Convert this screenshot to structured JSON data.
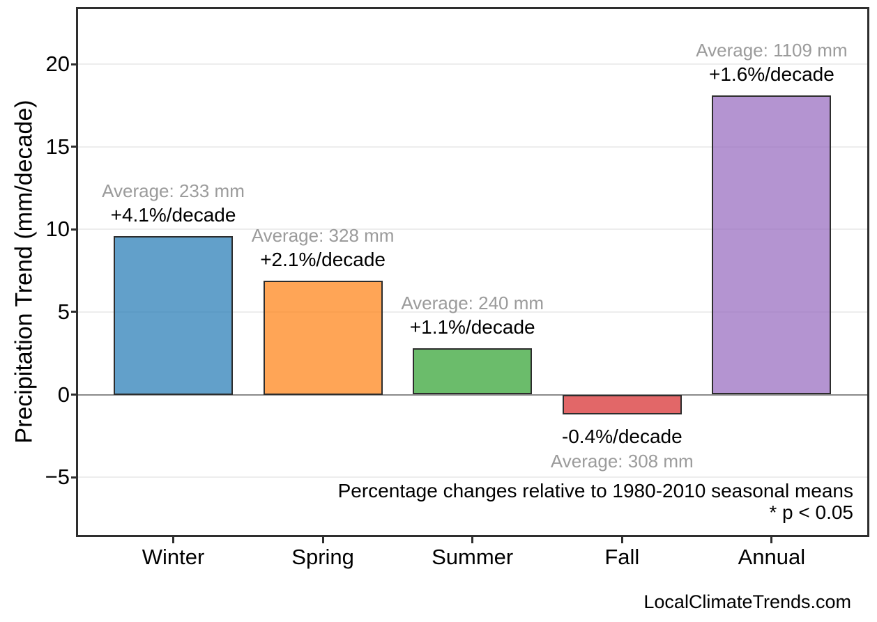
{
  "page": {
    "watermark": "LocalClimateTrends.com"
  },
  "chart_data": {
    "type": "bar",
    "ylabel": "Precipitation Trend (mm/decade)",
    "xlabel": "",
    "categories": [
      "Winter",
      "Spring",
      "Summer",
      "Fall",
      "Annual"
    ],
    "values": [
      9.6,
      6.9,
      2.8,
      -1.2,
      18.1
    ],
    "yticks": [
      20,
      15,
      10,
      5,
      0,
      -5
    ],
    "ytick_labels": [
      "20",
      "15",
      "10",
      "5",
      "0",
      "−5"
    ],
    "ylim": [
      -8.5,
      23.35
    ],
    "grid": "horizontal-light",
    "zero_line": true,
    "legend": "none",
    "bar_base_colors": [
      "#1f77b4",
      "#ff7f0e",
      "#2ca02c",
      "#d62728",
      "#9467bd"
    ],
    "bar_alpha": 0.7,
    "bar_edge_color": "#2d2d2d",
    "annotations": [
      {
        "category": "Winter",
        "average": "Average: 233 mm",
        "trend": "+4.1%/decade",
        "placement": "above"
      },
      {
        "category": "Spring",
        "average": "Average: 328 mm",
        "trend": "+2.1%/decade",
        "placement": "above"
      },
      {
        "category": "Summer",
        "average": "Average: 240 mm",
        "trend": "+1.1%/decade",
        "placement": "above"
      },
      {
        "category": "Fall",
        "average": "Average: 308 mm",
        "trend": "-0.4%/decade",
        "placement": "below"
      },
      {
        "category": "Annual",
        "average": "Average: 1109 mm",
        "trend": "+1.6%/decade",
        "placement": "above"
      }
    ],
    "annotation_avg_color": "#9b9b9b",
    "annotation_trend_color": "#000000",
    "footnote_line1": "Percentage changes relative to 1980-2010 seasonal means",
    "footnote_line2": "* p < 0.05"
  }
}
